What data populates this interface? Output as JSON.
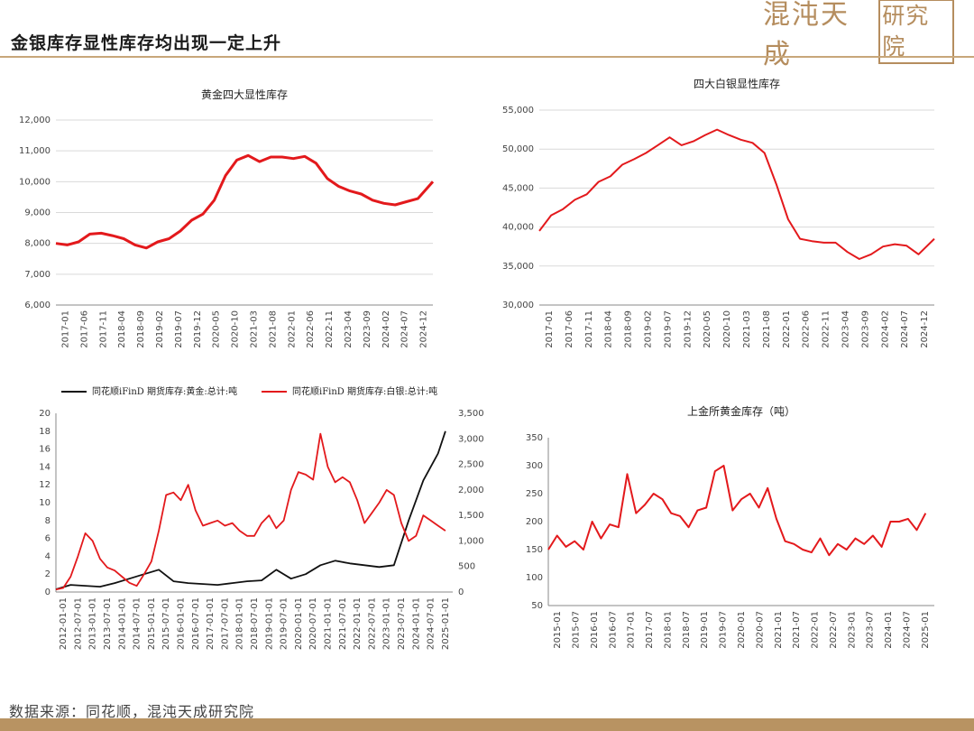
{
  "header": {
    "title": "金银库存显性库存均出现一定上升",
    "logo_text": "混沌天成",
    "logo_seal": "研究院"
  },
  "footer": {
    "source": "数据来源：同花顺，混沌天成研究院"
  },
  "colors": {
    "red": "#e3191c",
    "black": "#111111",
    "gold": "#b58d5e"
  },
  "chart_data": [
    {
      "id": "gold-four-visible",
      "type": "line",
      "title": "黄金四大显性库存",
      "ylim": [
        6000,
        12000
      ],
      "yticks": [
        "6,000",
        "7,000",
        "8,000",
        "9,000",
        "10,000",
        "11,000",
        "12,000"
      ],
      "yticks_val": [
        6000,
        7000,
        8000,
        9000,
        10000,
        11000,
        12000
      ],
      "xticks": [
        "2017-01",
        "2017-06",
        "2017-11",
        "2018-04",
        "2018-09",
        "2019-02",
        "2019-07",
        "2019-12",
        "2020-05",
        "2020-10",
        "2021-03",
        "2021-08",
        "2022-01",
        "2022-06",
        "2022-11",
        "2023-04",
        "2023-09",
        "2024-02",
        "2024-07",
        "2024-12"
      ],
      "series": [
        {
          "color": "#e3191c",
          "x": [
            0,
            3,
            6,
            9,
            12,
            15,
            18,
            21,
            24,
            27,
            30,
            33,
            36,
            39,
            42,
            45,
            48,
            51,
            54,
            57,
            60,
            63,
            66,
            69,
            72,
            75,
            78,
            81,
            84,
            87,
            90,
            93,
            96,
            100
          ],
          "values": [
            8000,
            7950,
            8050,
            8300,
            8330,
            8250,
            8150,
            7950,
            7850,
            8050,
            8150,
            8400,
            8750,
            8950,
            9400,
            10200,
            10700,
            10850,
            10650,
            10800,
            10800,
            10750,
            10820,
            10600,
            10100,
            9850,
            9700,
            9600,
            9400,
            9300,
            9250,
            9350,
            9450,
            10000
          ]
        }
      ]
    },
    {
      "id": "silver-four-visible",
      "type": "line",
      "title": "四大白银显性库存",
      "ylim": [
        30000,
        55000
      ],
      "yticks": [
        "30,000",
        "35,000",
        "40,000",
        "45,000",
        "50,000",
        "55,000"
      ],
      "yticks_val": [
        30000,
        35000,
        40000,
        45000,
        50000,
        55000
      ],
      "xticks": [
        "2017-01",
        "2017-06",
        "2017-11",
        "2018-04",
        "2018-09",
        "2019-02",
        "2019-07",
        "2019-12",
        "2020-05",
        "2020-10",
        "2021-03",
        "2021-08",
        "2022-01",
        "2022-06",
        "2022-11",
        "2023-04",
        "2023-09",
        "2024-02",
        "2024-07",
        "2024-12"
      ],
      "series": [
        {
          "color": "#e3191c",
          "x": [
            0,
            3,
            6,
            9,
            12,
            15,
            18,
            21,
            24,
            27,
            30,
            33,
            36,
            39,
            42,
            45,
            48,
            51,
            54,
            57,
            60,
            63,
            66,
            69,
            72,
            75,
            78,
            81,
            84,
            87,
            90,
            93,
            96,
            100
          ],
          "values": [
            39500,
            41500,
            42300,
            43500,
            44200,
            45800,
            46500,
            48000,
            48700,
            49500,
            50500,
            51500,
            50500,
            51000,
            51800,
            52500,
            51800,
            51200,
            50800,
            49500,
            45500,
            41000,
            38500,
            38200,
            38000,
            38000,
            36800,
            35900,
            36500,
            37500,
            37800,
            37600,
            36500,
            38500
          ]
        }
      ]
    },
    {
      "id": "futures-inventory",
      "type": "line",
      "title": "",
      "legend": [
        "同花顺iFinD 期货库存:黄金:总计:吨",
        "同花顺iFinD 期货库存:白银:总计:吨"
      ],
      "ylim": [
        0,
        20
      ],
      "yticks": [
        "0",
        "2",
        "4",
        "6",
        "8",
        "10",
        "12",
        "14",
        "16",
        "18",
        "20"
      ],
      "yticks_val": [
        0,
        2,
        4,
        6,
        8,
        10,
        12,
        14,
        16,
        18,
        20
      ],
      "y2lim": [
        0,
        3500
      ],
      "y2ticks": [
        "0",
        "500",
        "1,000",
        "1,500",
        "2,000",
        "2,500",
        "3,000",
        "3,500"
      ],
      "y2ticks_val": [
        0,
        500,
        1000,
        1500,
        2000,
        2500,
        3000,
        3500
      ],
      "xticks": [
        "2012-01-01",
        "2012-07-01",
        "2013-01-01",
        "2013-07-01",
        "2014-01-01",
        "2014-07-01",
        "2015-01-01",
        "2015-07-01",
        "2016-01-01",
        "2016-07-01",
        "2017-01-01",
        "2017-07-01",
        "2018-01-01",
        "2018-07-01",
        "2019-01-01",
        "2019-07-01",
        "2020-01-01",
        "2020-07-01",
        "2021-01-01",
        "2021-07-01",
        "2022-01-01",
        "2022-07-01",
        "2023-01-01",
        "2023-07-01",
        "2024-01-01",
        "2024-07-01",
        "2025-01-01"
      ],
      "series": [
        {
          "color": "#111111",
          "axis": "left",
          "x": [
            0,
            1,
            2,
            3,
            4,
            5,
            6,
            7,
            8,
            9,
            10,
            11,
            12,
            13,
            14,
            15,
            16,
            17,
            18,
            19,
            20,
            21,
            22,
            23,
            24,
            25,
            26,
            26.5
          ],
          "values": [
            0.3,
            0.8,
            0.7,
            0.6,
            1.0,
            1.5,
            2.0,
            2.5,
            1.2,
            1.0,
            0.9,
            0.8,
            1.0,
            1.2,
            1.3,
            2.5,
            1.5,
            2.0,
            3.0,
            3.5,
            3.2,
            3.0,
            2.8,
            3.0,
            8.0,
            12.5,
            15.5,
            18.0
          ]
        },
        {
          "color": "#e3191c",
          "axis": "right",
          "x": [
            0,
            0.5,
            1,
            1.5,
            2,
            2.5,
            3,
            3.5,
            4,
            4.5,
            5,
            5.5,
            6,
            6.5,
            7,
            7.5,
            8,
            8.5,
            9,
            9.5,
            10,
            10.5,
            11,
            11.5,
            12,
            12.5,
            13,
            13.5,
            14,
            14.5,
            15,
            15.5,
            16,
            16.5,
            17,
            17.5,
            18,
            18.5,
            19,
            19.5,
            20,
            20.5,
            21,
            21.5,
            22,
            22.5,
            23,
            23.5,
            24,
            24.5,
            25,
            25.5,
            26,
            26.5
          ],
          "values": [
            50,
            80,
            300,
            700,
            1150,
            1000,
            650,
            480,
            420,
            300,
            180,
            120,
            350,
            600,
            1200,
            1900,
            1950,
            1800,
            2100,
            1600,
            1300,
            1350,
            1400,
            1300,
            1350,
            1200,
            1100,
            1100,
            1350,
            1500,
            1250,
            1400,
            2000,
            2350,
            2300,
            2200,
            3100,
            2450,
            2150,
            2250,
            2150,
            1800,
            1350,
            1550,
            1750,
            2000,
            1900,
            1350,
            1000,
            1100,
            1500,
            1400,
            1300,
            1200
          ]
        }
      ]
    },
    {
      "id": "sge-gold",
      "type": "line",
      "title": "上金所黄金库存（吨）",
      "ylim": [
        50,
        350
      ],
      "yticks": [
        "50",
        "100",
        "150",
        "200",
        "250",
        "300",
        "350"
      ],
      "yticks_val": [
        50,
        100,
        150,
        200,
        250,
        300,
        350
      ],
      "xticks": [
        "2015-01",
        "2015-07",
        "2016-01",
        "2016-07",
        "2017-01",
        "2017-07",
        "2018-01",
        "2018-07",
        "2019-01",
        "2019-07",
        "2020-01",
        "2020-07",
        "2021-01",
        "2021-07",
        "2022-01",
        "2022-07",
        "2023-01",
        "2023-07",
        "2024-01",
        "2024-07",
        "2025-01"
      ],
      "series": [
        {
          "color": "#e3191c",
          "x": [
            0,
            0.5,
            1,
            1.5,
            2,
            2.5,
            3,
            3.5,
            4,
            4.5,
            5,
            5.5,
            6,
            6.5,
            7,
            7.5,
            8,
            8.5,
            9,
            9.5,
            10,
            10.5,
            11,
            11.5,
            12,
            12.5,
            13,
            13.5,
            14,
            14.5,
            15,
            15.5,
            16,
            16.5,
            17,
            17.5,
            18,
            18.5,
            19,
            19.5,
            20,
            20.5,
            21,
            21.5
          ],
          "values": [
            150,
            175,
            155,
            165,
            150,
            200,
            170,
            195,
            190,
            285,
            215,
            230,
            250,
            240,
            215,
            210,
            190,
            220,
            225,
            290,
            300,
            220,
            240,
            250,
            225,
            260,
            205,
            165,
            160,
            150,
            145,
            170,
            140,
            160,
            150,
            170,
            160,
            175,
            155,
            200,
            200,
            205,
            185,
            215
          ]
        }
      ]
    }
  ]
}
